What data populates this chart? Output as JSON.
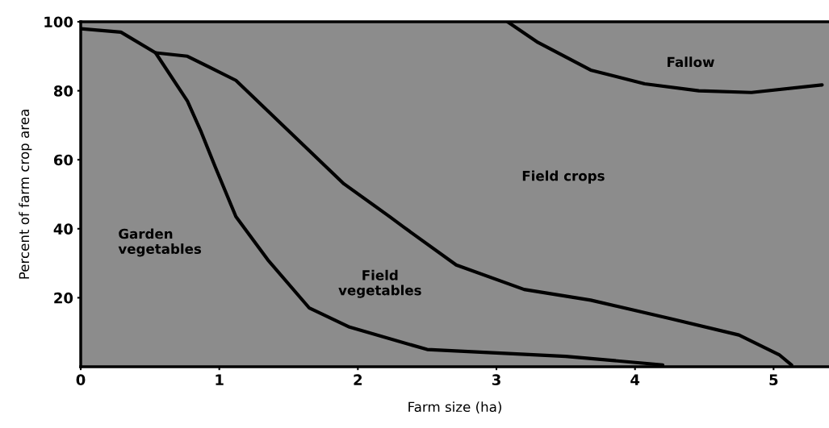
{
  "chart_data": {
    "type": "line",
    "xlabel": "Farm size (ha)",
    "ylabel": "Percent of farm crop area",
    "xlim": [
      0,
      5.4
    ],
    "xticks": [
      0,
      1,
      2,
      3,
      4,
      5
    ],
    "ylim": [
      0,
      100
    ],
    "yticks": [
      20,
      40,
      60,
      80,
      100
    ],
    "grid": false,
    "marker": "none",
    "line_style": "solid",
    "series": [
      {
        "color": "#000000",
        "x": [
          0,
          0.29,
          0.54,
          0.77,
          0.87,
          0.97,
          1.12,
          1.35,
          1.65,
          1.94,
          2.5,
          3.5,
          4.07,
          4.2
        ],
        "values": [
          98,
          97,
          91,
          77,
          68,
          58,
          43.5,
          31,
          17,
          11.5,
          5,
          3,
          1,
          0.5
        ]
      },
      {
        "color": "#000000",
        "x": [
          0.54,
          0.77,
          1.12,
          1.51,
          1.9,
          2.23,
          2.33,
          2.71,
          3.2,
          3.68,
          4.26,
          4.75,
          5.04,
          5.13
        ],
        "values": [
          91,
          90,
          83,
          68,
          53,
          43.5,
          40.5,
          29.5,
          22.4,
          19.3,
          13.9,
          9.2,
          3.5,
          0.5
        ]
      },
      {
        "color": "#000000",
        "x": [
          3.08,
          3.3,
          3.68,
          4.07,
          4.46,
          4.84,
          5.35
        ],
        "values": [
          100,
          94,
          86,
          82,
          80,
          79.5,
          81.7
        ]
      }
    ],
    "annotations": [
      "Fallow",
      "Field crops",
      "Garden\nvegetables",
      "Field\nvegetables"
    ]
  }
}
